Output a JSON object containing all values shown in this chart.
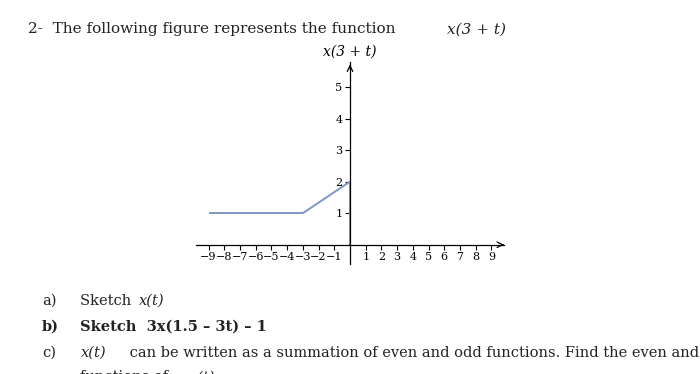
{
  "title_plain": "2-  The following figure represents the function ",
  "title_italic": "x(3 + t)",
  "graph_title": "x(3 + t)",
  "xlim": [
    -9.8,
    9.8
  ],
  "ylim": [
    -0.6,
    5.8
  ],
  "xticks": [
    -9,
    -8,
    -7,
    -6,
    -5,
    -4,
    -3,
    -2,
    -1,
    1,
    2,
    3,
    4,
    5,
    6,
    7,
    8,
    9
  ],
  "yticks": [
    1,
    2,
    3,
    4,
    5
  ],
  "line_color": "#8096c8",
  "line_width": 1.4,
  "segments": [
    {
      "x": [
        -9,
        -3
      ],
      "y": [
        1,
        1
      ]
    },
    {
      "x": [
        -3,
        0
      ],
      "y": [
        1,
        2
      ]
    },
    {
      "x": [
        0,
        0
      ],
      "y": [
        2,
        0
      ]
    }
  ],
  "bg_color": "#ffffff",
  "text_color": "#222222",
  "font_size_title": 11,
  "font_size_body": 10.5,
  "font_size_tick": 8
}
